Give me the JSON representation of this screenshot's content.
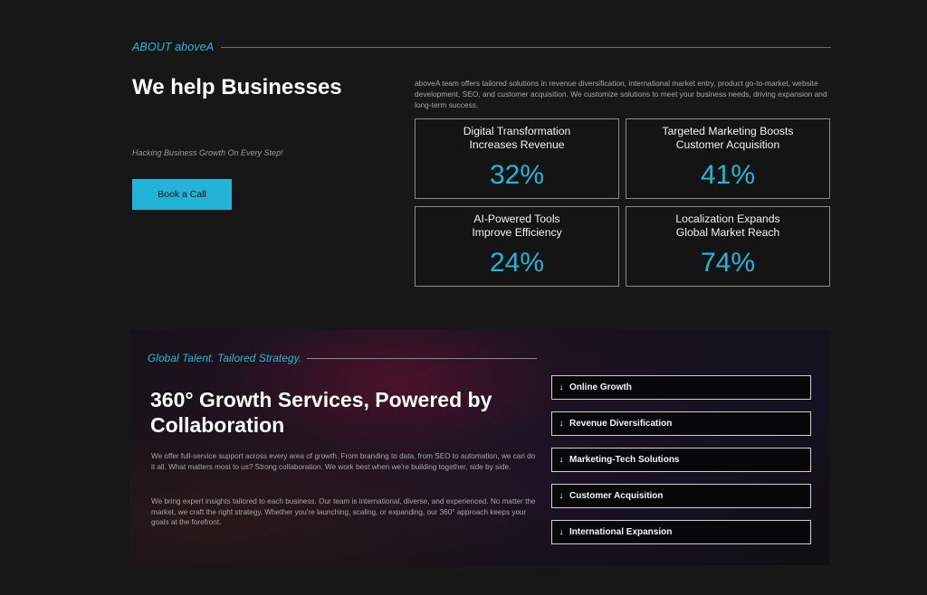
{
  "about": {
    "eyebrow": "ABOUT aboveA",
    "heading": "We help Businesses",
    "tagline": "Hacking Business Growth On Every Step!",
    "cta_label": "Book a Call",
    "description": "aboveA team offers tailored solutions in revenue diversification, international market entry, product go-to-market, website development, SEO, and customer acquisition. We customize solutions to meet your business needs, driving expansion and long-term success.",
    "stats": [
      {
        "title": "Digital Transformation\nIncreases Revenue",
        "value": "32%"
      },
      {
        "title": "Targeted Marketing Boosts\nCustomer Acquisition",
        "value": "41%"
      },
      {
        "title": "AI-Powered Tools\nImprove Efficiency",
        "value": "24%"
      },
      {
        "title": "Localization Expands\nGlobal Market Reach",
        "value": "74%"
      }
    ]
  },
  "services": {
    "eyebrow": "Global Talent. Tailored Strategy.",
    "heading": "360° Growth Services, Powered by Collaboration",
    "paragraphs": [
      "We offer full-service support across every area of growth. From branding to data, from SEO to automation, we can do it all. What matters most to us? Strong collaboration. We work best when we're building together, side by side.",
      "We bring expert insights tailored to each business. Our team is international, diverse, and experienced. No matter the market, we craft the right strategy. Whether you're launching, scaling, or expanding, our 360° approach keeps your goals at the forefront."
    ],
    "accordion_icon": "arrow-down-icon",
    "accordion": [
      {
        "label": "Online Growth"
      },
      {
        "label": "Revenue Diversification"
      },
      {
        "label": "Marketing-Tech Solutions"
      },
      {
        "label": "Customer Acquisition"
      },
      {
        "label": "International Expansion"
      }
    ]
  },
  "colors": {
    "accent": "#26b4d8",
    "background": "#171717",
    "card_border": "#8a8a8a"
  }
}
